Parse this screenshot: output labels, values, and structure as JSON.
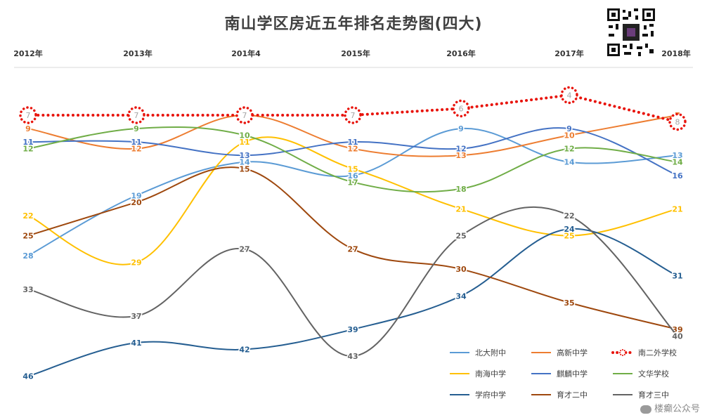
{
  "chart_data": {
    "type": "line",
    "title": "南山学区房近五年排名走势图(四大)",
    "categories": [
      "2012年",
      "2013年",
      "201年4",
      "2015年",
      "2016年",
      "2017年",
      "2018年"
    ],
    "y_axis": {
      "inverted": true,
      "visible": false,
      "min": 0,
      "max": 48
    },
    "grid": false,
    "legend_position": "bottom-right",
    "series": [
      {
        "name": "北大附中",
        "color": "#5B9BD5",
        "style": "solid",
        "values": [
          28,
          19,
          14,
          16,
          9,
          14,
          13
        ]
      },
      {
        "name": "高新中学",
        "color": "#ED7D31",
        "style": "solid",
        "values": [
          9,
          12,
          7,
          12,
          13,
          10,
          7
        ]
      },
      {
        "name": "南二外学校",
        "color": "#E8140C",
        "style": "dotted",
        "values": [
          7,
          7,
          7,
          7,
          6,
          4,
          8
        ]
      },
      {
        "name": "南海中学",
        "color": "#FFC000",
        "style": "solid",
        "values": [
          22,
          29,
          11,
          15,
          21,
          25,
          21
        ]
      },
      {
        "name": "麒麟中学",
        "color": "#4472C4",
        "style": "solid",
        "values": [
          11,
          11,
          13,
          11,
          12,
          9,
          16
        ]
      },
      {
        "name": "文华学校",
        "color": "#70AD47",
        "style": "solid",
        "values": [
          12,
          9,
          10,
          17,
          18,
          12,
          14
        ]
      },
      {
        "name": "学府中学",
        "color": "#255E91",
        "style": "solid",
        "values": [
          46,
          41,
          42,
          39,
          34,
          24,
          31
        ]
      },
      {
        "name": "育才二中",
        "color": "#9E480E",
        "style": "solid",
        "values": [
          25,
          20,
          15,
          27,
          30,
          35,
          39
        ]
      },
      {
        "name": "育才三中",
        "color": "#636363",
        "style": "solid",
        "values": [
          33,
          37,
          27,
          43,
          25,
          22,
          40
        ]
      }
    ]
  },
  "watermark": "楼癫公众号",
  "qr_icon": "qr-code-icon"
}
